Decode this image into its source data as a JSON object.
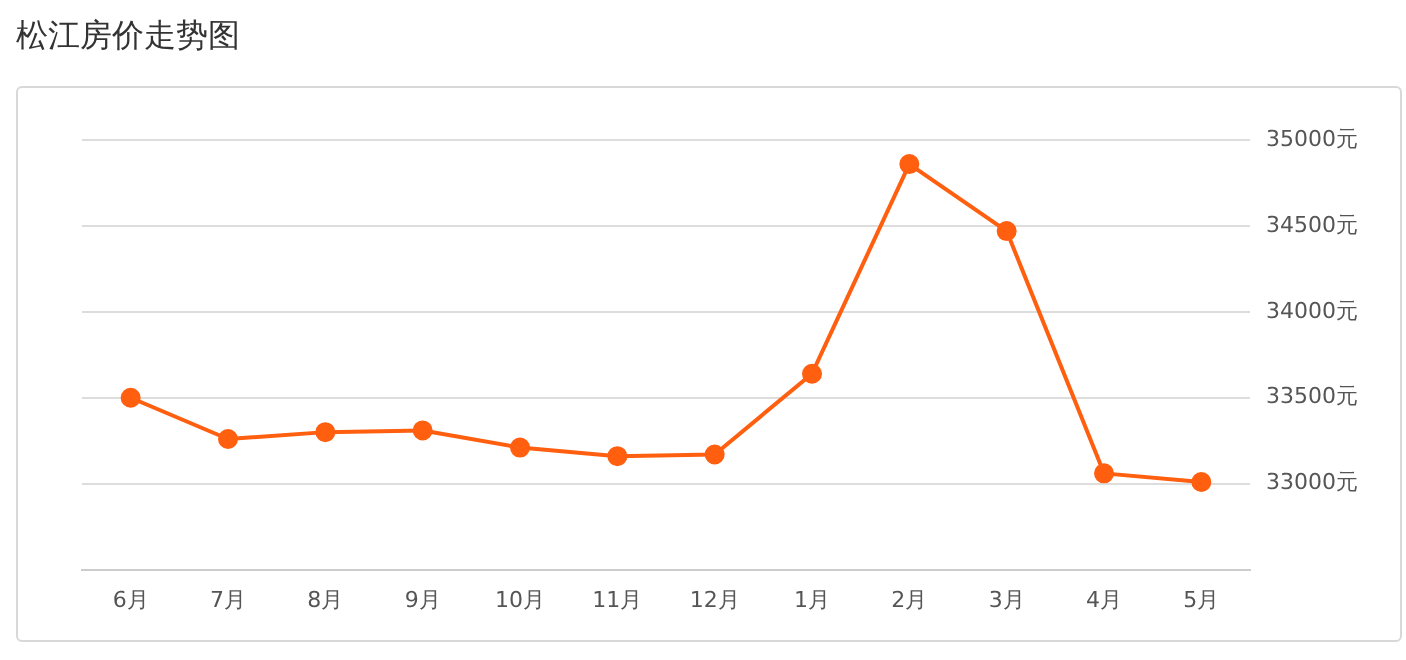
{
  "chart_data": {
    "type": "line",
    "title": "松江房价走势图",
    "categories": [
      "6月",
      "7月",
      "8月",
      "9月",
      "10月",
      "11月",
      "12月",
      "1月",
      "2月",
      "3月",
      "4月",
      "5月"
    ],
    "series": [
      {
        "color": "#ff5f0f",
        "values": [
          33500,
          33260,
          33300,
          33310,
          33210,
          33160,
          33170,
          33640,
          34860,
          34470,
          33060,
          33010
        ]
      }
    ],
    "ylim": [
      32500,
      35000
    ],
    "yticks": [
      {
        "value": 33000,
        "label": "33000元"
      },
      {
        "value": 33500,
        "label": "33500元"
      },
      {
        "value": 34000,
        "label": "34000元"
      },
      {
        "value": 34500,
        "label": "34500元"
      },
      {
        "value": 35000,
        "label": "35000元"
      }
    ],
    "grid": "y",
    "legend": false,
    "marker": "circle",
    "line_style": "solid"
  }
}
